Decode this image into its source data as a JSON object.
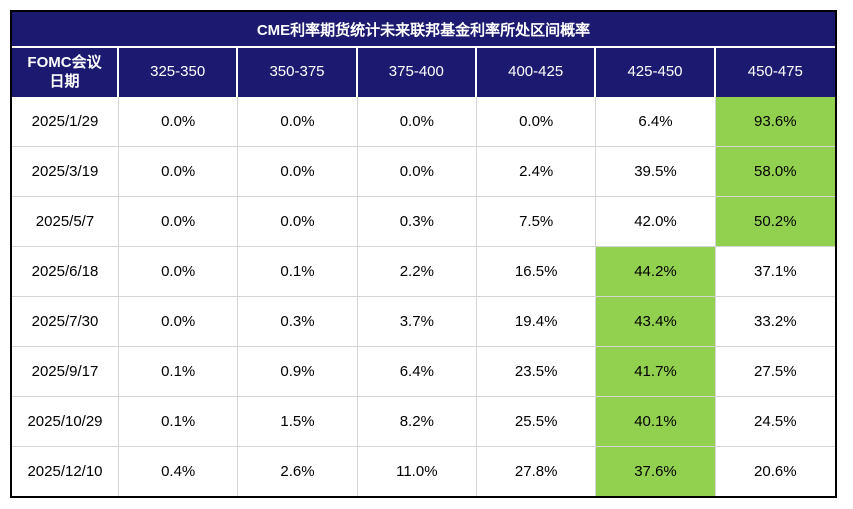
{
  "table": {
    "title": "CME利率期货统计未来联邦基金利率所处区间概率",
    "columns": [
      "FOMC会议\n日期",
      "325-350",
      "350-375",
      "375-400",
      "400-425",
      "425-450",
      "450-475"
    ],
    "rows": [
      {
        "date": "2025/1/29",
        "values": [
          "0.0%",
          "0.0%",
          "0.0%",
          "0.0%",
          "6.4%",
          "93.6%"
        ],
        "highlight": 5
      },
      {
        "date": "2025/3/19",
        "values": [
          "0.0%",
          "0.0%",
          "0.0%",
          "2.4%",
          "39.5%",
          "58.0%"
        ],
        "highlight": 5
      },
      {
        "date": "2025/5/7",
        "values": [
          "0.0%",
          "0.0%",
          "0.3%",
          "7.5%",
          "42.0%",
          "50.2%"
        ],
        "highlight": 5
      },
      {
        "date": "2025/6/18",
        "values": [
          "0.0%",
          "0.1%",
          "2.2%",
          "16.5%",
          "44.2%",
          "37.1%"
        ],
        "highlight": 4
      },
      {
        "date": "2025/7/30",
        "values": [
          "0.0%",
          "0.3%",
          "3.7%",
          "19.4%",
          "43.4%",
          "33.2%"
        ],
        "highlight": 4
      },
      {
        "date": "2025/9/17",
        "values": [
          "0.1%",
          "0.9%",
          "6.4%",
          "23.5%",
          "41.7%",
          "27.5%"
        ],
        "highlight": 4
      },
      {
        "date": "2025/10/29",
        "values": [
          "0.1%",
          "1.5%",
          "8.2%",
          "25.5%",
          "40.1%",
          "24.5%"
        ],
        "highlight": 4
      },
      {
        "date": "2025/12/10",
        "values": [
          "0.4%",
          "2.6%",
          "11.0%",
          "27.8%",
          "37.6%",
          "20.6%"
        ],
        "highlight": 4
      }
    ],
    "colors": {
      "header_bg": "#1C1A70",
      "header_text": "#FFFFFF",
      "highlight_bg": "#92D050",
      "grid_line": "#D4D4D4",
      "outer_border": "#000000",
      "cell_text": "#000000"
    }
  },
  "chart_data": {
    "type": "table",
    "title": "CME利率期货统计未来联邦基金利率所处区间概率",
    "row_header": "FOMC会议日期",
    "columns": [
      "325-350",
      "350-375",
      "375-400",
      "400-425",
      "425-450",
      "450-475"
    ],
    "rows": [
      "2025/1/29",
      "2025/3/19",
      "2025/5/7",
      "2025/6/18",
      "2025/7/30",
      "2025/9/17",
      "2025/10/29",
      "2025/12/10"
    ],
    "values_pct": [
      [
        0.0,
        0.0,
        0.0,
        0.0,
        6.4,
        93.6
      ],
      [
        0.0,
        0.0,
        0.0,
        2.4,
        39.5,
        58.0
      ],
      [
        0.0,
        0.0,
        0.3,
        7.5,
        42.0,
        50.2
      ],
      [
        0.0,
        0.1,
        2.2,
        16.5,
        44.2,
        37.1
      ],
      [
        0.0,
        0.3,
        3.7,
        19.4,
        43.4,
        33.2
      ],
      [
        0.1,
        0.9,
        6.4,
        23.5,
        41.7,
        27.5
      ],
      [
        0.1,
        1.5,
        8.2,
        25.5,
        40.1,
        24.5
      ],
      [
        0.4,
        2.6,
        11.0,
        27.8,
        37.6,
        20.6
      ]
    ],
    "highlighted_max_per_row": [
      "450-475",
      "450-475",
      "450-475",
      "425-450",
      "425-450",
      "425-450",
      "425-450",
      "425-450"
    ],
    "legend_position": "none",
    "grid": true
  }
}
